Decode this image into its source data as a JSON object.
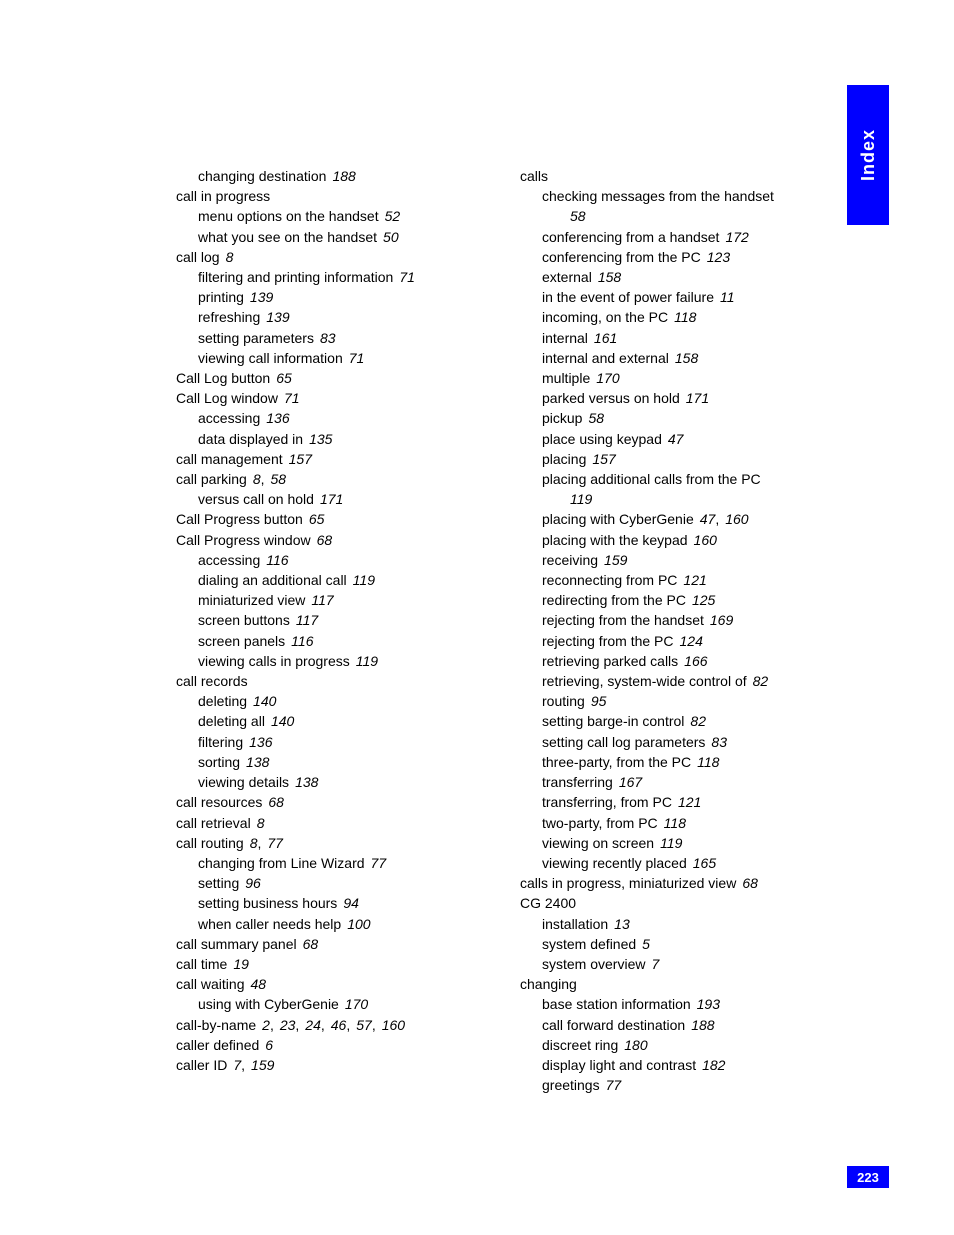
{
  "sidebar": {
    "label": "Index",
    "bg_color": "#0000ff",
    "text_color": "#ffffff"
  },
  "page_number": "223",
  "columns": [
    [
      {
        "level": 1,
        "text": "changing destination",
        "pages": "188"
      },
      {
        "level": 0,
        "text": "call in progress"
      },
      {
        "level": 1,
        "text": "menu options on the handset",
        "pages": "52"
      },
      {
        "level": 1,
        "text": "what you see on the handset",
        "pages": "50"
      },
      {
        "level": 0,
        "text": "call log",
        "pages": "8"
      },
      {
        "level": 1,
        "text": "filtering and printing information",
        "pages": "71"
      },
      {
        "level": 1,
        "text": "printing",
        "pages": "139"
      },
      {
        "level": 1,
        "text": "refreshing",
        "pages": "139"
      },
      {
        "level": 1,
        "text": "setting parameters",
        "pages": "83"
      },
      {
        "level": 1,
        "text": "viewing call information",
        "pages": "71"
      },
      {
        "level": 0,
        "text": "Call Log button",
        "pages": "65"
      },
      {
        "level": 0,
        "text": "Call Log window",
        "pages": "71"
      },
      {
        "level": 1,
        "text": "accessing",
        "pages": "136"
      },
      {
        "level": 1,
        "text": "data displayed in",
        "pages": "135"
      },
      {
        "level": 0,
        "text": "call management",
        "pages": "157"
      },
      {
        "level": 0,
        "text": "call parking",
        "pages": "8, 58"
      },
      {
        "level": 1,
        "text": "versus call on hold",
        "pages": "171"
      },
      {
        "level": 0,
        "text": "Call Progress button",
        "pages": "65"
      },
      {
        "level": 0,
        "text": "Call Progress window",
        "pages": "68"
      },
      {
        "level": 1,
        "text": "accessing",
        "pages": "116"
      },
      {
        "level": 1,
        "text": "dialing an additional call",
        "pages": "119"
      },
      {
        "level": 1,
        "text": "miniaturized view",
        "pages": "117"
      },
      {
        "level": 1,
        "text": "screen buttons",
        "pages": "117"
      },
      {
        "level": 1,
        "text": "screen panels",
        "pages": "116"
      },
      {
        "level": 1,
        "text": "viewing calls in progress",
        "pages": "119"
      },
      {
        "level": 0,
        "text": "call records"
      },
      {
        "level": 1,
        "text": "deleting",
        "pages": "140"
      },
      {
        "level": 1,
        "text": "deleting all",
        "pages": "140"
      },
      {
        "level": 1,
        "text": "filtering",
        "pages": "136"
      },
      {
        "level": 1,
        "text": "sorting",
        "pages": "138"
      },
      {
        "level": 1,
        "text": "viewing details",
        "pages": "138"
      },
      {
        "level": 0,
        "text": "call resources",
        "pages": "68"
      },
      {
        "level": 0,
        "text": "call retrieval",
        "pages": "8"
      },
      {
        "level": 0,
        "text": "call routing",
        "pages": "8, 77"
      },
      {
        "level": 1,
        "text": "changing from Line Wizard",
        "pages": "77"
      },
      {
        "level": 1,
        "text": "setting",
        "pages": "96"
      },
      {
        "level": 1,
        "text": "setting business hours",
        "pages": "94"
      },
      {
        "level": 1,
        "text": "when caller needs help",
        "pages": "100"
      },
      {
        "level": 0,
        "text": "call summary panel",
        "pages": "68"
      },
      {
        "level": 0,
        "text": "call time",
        "pages": "19"
      },
      {
        "level": 0,
        "text": "call waiting",
        "pages": "48"
      },
      {
        "level": 1,
        "text": "using with CyberGenie",
        "pages": "170"
      },
      {
        "level": 0,
        "text": "call-by-name",
        "pages": "2, 23, 24, 46, 57, 160"
      },
      {
        "level": 0,
        "text": "caller defined",
        "pages": "6"
      },
      {
        "level": 0,
        "text": "caller ID",
        "pages": "7, 159"
      }
    ],
    [
      {
        "level": 0,
        "text": "calls"
      },
      {
        "level": 1,
        "text": "checking messages from the handset",
        "pages": "58",
        "wrap": true
      },
      {
        "level": 1,
        "text": "conferencing from a handset",
        "pages": "172"
      },
      {
        "level": 1,
        "text": "conferencing from the PC",
        "pages": "123"
      },
      {
        "level": 1,
        "text": "external",
        "pages": "158"
      },
      {
        "level": 1,
        "text": "in the event of power failure",
        "pages": "11"
      },
      {
        "level": 1,
        "text": "incoming, on the PC",
        "pages": "118"
      },
      {
        "level": 1,
        "text": "internal",
        "pages": "161"
      },
      {
        "level": 1,
        "text": "internal and external",
        "pages": "158"
      },
      {
        "level": 1,
        "text": "multiple",
        "pages": "170"
      },
      {
        "level": 1,
        "text": "parked versus on hold",
        "pages": "171"
      },
      {
        "level": 1,
        "text": "pickup",
        "pages": "58"
      },
      {
        "level": 1,
        "text": "place using keypad",
        "pages": "47"
      },
      {
        "level": 1,
        "text": "placing",
        "pages": "157"
      },
      {
        "level": 1,
        "text": "placing additional calls from the PC",
        "pages": "119",
        "wrap": true
      },
      {
        "level": 1,
        "text": "placing with CyberGenie",
        "pages": "47, 160"
      },
      {
        "level": 1,
        "text": "placing with the keypad",
        "pages": "160"
      },
      {
        "level": 1,
        "text": "receiving",
        "pages": "159"
      },
      {
        "level": 1,
        "text": "reconnecting from PC",
        "pages": "121"
      },
      {
        "level": 1,
        "text": "redirecting from the PC",
        "pages": "125"
      },
      {
        "level": 1,
        "text": "rejecting from the handset",
        "pages": "169"
      },
      {
        "level": 1,
        "text": "rejecting from the PC",
        "pages": "124"
      },
      {
        "level": 1,
        "text": "retrieving parked calls",
        "pages": "166"
      },
      {
        "level": 1,
        "text": "retrieving, system-wide control of",
        "pages": "82"
      },
      {
        "level": 1,
        "text": "routing",
        "pages": "95"
      },
      {
        "level": 1,
        "text": "setting barge-in control",
        "pages": "82"
      },
      {
        "level": 1,
        "text": "setting call log parameters",
        "pages": "83"
      },
      {
        "level": 1,
        "text": "three-party, from the PC",
        "pages": "118"
      },
      {
        "level": 1,
        "text": "transferring",
        "pages": "167"
      },
      {
        "level": 1,
        "text": "transferring, from PC",
        "pages": "121"
      },
      {
        "level": 1,
        "text": "two-party, from PC",
        "pages": "118"
      },
      {
        "level": 1,
        "text": "viewing on screen",
        "pages": "119"
      },
      {
        "level": 1,
        "text": "viewing recently placed",
        "pages": "165"
      },
      {
        "level": 0,
        "text": "calls in progress, miniaturized view",
        "pages": "68"
      },
      {
        "level": 0,
        "text": "CG 2400"
      },
      {
        "level": 1,
        "text": "installation",
        "pages": "13"
      },
      {
        "level": 1,
        "text": "system defined",
        "pages": "5"
      },
      {
        "level": 1,
        "text": "system overview",
        "pages": "7"
      },
      {
        "level": 0,
        "text": "changing"
      },
      {
        "level": 1,
        "text": "base station information",
        "pages": "193"
      },
      {
        "level": 1,
        "text": "call forward destination",
        "pages": "188"
      },
      {
        "level": 1,
        "text": "discreet ring",
        "pages": "180"
      },
      {
        "level": 1,
        "text": "display light and contrast",
        "pages": "182"
      },
      {
        "level": 1,
        "text": "greetings",
        "pages": "77"
      }
    ]
  ]
}
